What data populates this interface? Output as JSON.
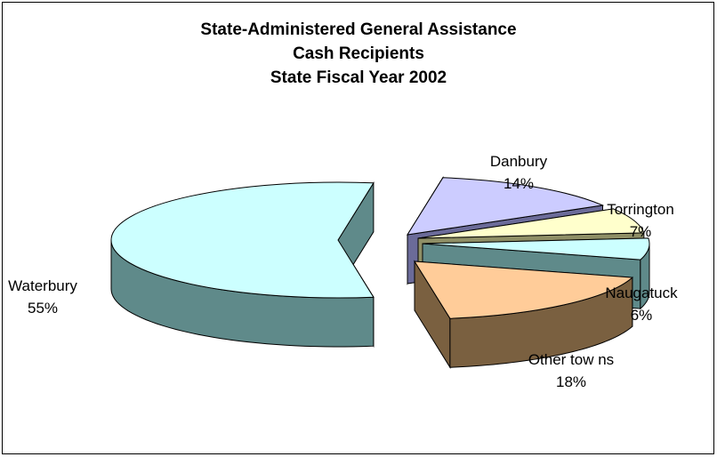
{
  "chart_data": {
    "type": "pie",
    "title": [
      "State-Administered General Assistance",
      "Cash Recipients",
      "State Fiscal Year 2002"
    ],
    "categories": [
      "Waterbury",
      "Danbury",
      "Torrington",
      "Naugatuck",
      "Other tow ns"
    ],
    "percent_labels": [
      "55%",
      "14%",
      "7%",
      "6%",
      "18%"
    ],
    "values": [
      55,
      14,
      7,
      6,
      18
    ],
    "exploded": true,
    "three_d": true,
    "colors": [
      "#ccffff",
      "#ccccff",
      "#ffffcc",
      "#ccffff",
      "#ffcc99"
    ],
    "side_colors": [
      "#5f8a8a",
      "#6b6b99",
      "#8f8f66",
      "#5f8a8a",
      "#7a6040"
    ]
  }
}
